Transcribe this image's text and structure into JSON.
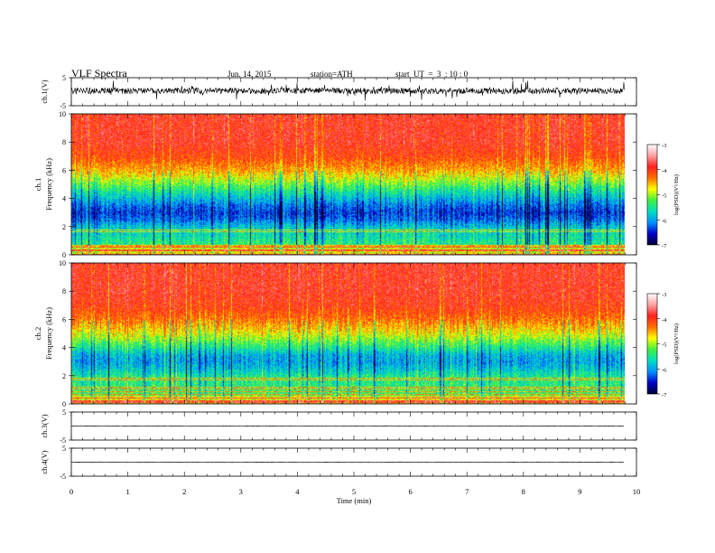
{
  "header": {
    "title": "VLF Spectra",
    "date": "Jun. 14, 2015",
    "station": "station=ATH",
    "start": "start  UT  =  3  : 10 : 0"
  },
  "chart_data": [
    {
      "type": "line",
      "panel": "ch1-waveform",
      "ylabel": "ch.1(V)",
      "ylim": [
        -5,
        5
      ],
      "yticks": [
        "5",
        "-5"
      ],
      "xlim": [
        0,
        10
      ],
      "data_end_min": 9.8,
      "description_level": 0.3,
      "color": "#000000"
    },
    {
      "type": "heatmap",
      "panel": "ch1-spectrogram",
      "ylabel": "ch.1\nFrequency (kHz)",
      "ylim": [
        0,
        10
      ],
      "yticks": [
        "0",
        "2",
        "4",
        "6",
        "8",
        "10"
      ],
      "xlim": [
        0,
        10
      ],
      "data_end_min": 9.8,
      "colorbar": {
        "label": "log(PSD)(V²/Hz)",
        "ticks": [
          "-3",
          "-4",
          "-5",
          "-6",
          "-7"
        ],
        "range": [
          -7,
          -3
        ],
        "colors": [
          "#000030",
          "#0000c8",
          "#0090ff",
          "#00e0c0",
          "#40f040",
          "#ffff00",
          "#ff7000",
          "#ff2020",
          "#ffa0a0",
          "#ffffff"
        ]
      },
      "profile_khz": [
        0,
        1,
        2,
        2.5,
        3,
        3.5,
        4,
        5,
        6,
        7,
        8,
        10
      ],
      "profile_logpsd": [
        -5.2,
        -5.5,
        -5.8,
        -6.2,
        -6.4,
        -6.2,
        -5.9,
        -5.2,
        -4.5,
        -4.1,
        -3.9,
        -3.9
      ]
    },
    {
      "type": "heatmap",
      "panel": "ch2-spectrogram",
      "ylabel": "ch.2\nFrequency (kHz)",
      "ylim": [
        0,
        10
      ],
      "yticks": [
        "0",
        "2",
        "4",
        "6",
        "8",
        "10"
      ],
      "xlim": [
        0,
        10
      ],
      "data_end_min": 9.8,
      "colorbar": {
        "label": "log(PSD)(V²/Hz)",
        "ticks": [
          "-3",
          "-4",
          "-5",
          "-6",
          "-7"
        ],
        "range": [
          -7,
          -3
        ],
        "colors": [
          "#000030",
          "#0000c8",
          "#0090ff",
          "#00e0c0",
          "#40f040",
          "#ffff00",
          "#ff7000",
          "#ff2020",
          "#ffa0a0",
          "#ffffff"
        ]
      },
      "profile_khz": [
        0,
        1,
        2,
        2.5,
        3,
        3.5,
        4,
        5,
        6,
        7,
        8,
        10
      ],
      "profile_logpsd": [
        -5.2,
        -5.4,
        -5.5,
        -5.8,
        -6.0,
        -5.9,
        -5.5,
        -4.8,
        -4.3,
        -4.0,
        -3.9,
        -3.9
      ]
    },
    {
      "type": "line",
      "panel": "ch3-waveform",
      "ylabel": "ch.3(V)",
      "ylim": [
        -5,
        5
      ],
      "yticks": [
        "5",
        "-5"
      ],
      "xlim": [
        0,
        10
      ],
      "data_end_min": 9.8,
      "level": 0,
      "color": "#000000"
    },
    {
      "type": "line",
      "panel": "ch4-waveform",
      "ylabel": "ch.4(V)",
      "ylim": [
        -5,
        5
      ],
      "yticks": [
        "5",
        "-5"
      ],
      "xlim": [
        0,
        10
      ],
      "data_end_min": 9.8,
      "level": 0,
      "color": "#000000"
    }
  ],
  "xaxis": {
    "label": "Time (min)",
    "ticks": [
      "0",
      "1",
      "2",
      "3",
      "4",
      "5",
      "6",
      "7",
      "8",
      "9",
      "10"
    ]
  }
}
